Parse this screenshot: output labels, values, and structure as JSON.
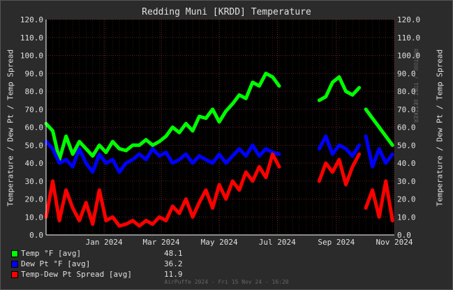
{
  "chart_data": {
    "type": "line",
    "title": "Redding Muni [KRDD] Temperature",
    "ylabel": "Temperature / Dew Pt / Temp Spread",
    "ylim": [
      0,
      120
    ],
    "yticks": [
      "0.0",
      "10.0",
      "20.0",
      "30.0",
      "40.0",
      "50.0",
      "60.0",
      "70.0",
      "80.0",
      "90.0",
      "100.0",
      "110.0",
      "120.0"
    ],
    "xlim": [
      "2023-11-15",
      "2024-11-15"
    ],
    "xticks": [
      {
        "label": "Jan 2024",
        "date": "2024-01-15"
      },
      {
        "label": "Mar 2024",
        "date": "2024-03-15"
      },
      {
        "label": "May 2024",
        "date": "2024-05-15"
      },
      {
        "label": "Jul 2024",
        "date": "2024-07-15"
      },
      {
        "label": "Sep 2024",
        "date": "2024-09-15"
      },
      {
        "label": "Nov 2024",
        "date": "2024-11-15"
      }
    ],
    "grid": true,
    "legend_position": "bottom-left",
    "series": [
      {
        "name": "Temp °F [avg]",
        "color": "#00ff00",
        "avg": "48.1",
        "points": [
          [
            "2023-11-15",
            62
          ],
          [
            "2023-11-22",
            58
          ],
          [
            "2023-11-29",
            42
          ],
          [
            "2023-12-06",
            55
          ],
          [
            "2023-12-13",
            45
          ],
          [
            "2023-12-20",
            52
          ],
          [
            "2023-12-27",
            48
          ],
          [
            "2024-01-03",
            44
          ],
          [
            "2024-01-10",
            50
          ],
          [
            "2024-01-17",
            46
          ],
          [
            "2024-01-24",
            52
          ],
          [
            "2024-01-31",
            48
          ],
          [
            "2024-02-07",
            47
          ],
          [
            "2024-02-14",
            50
          ],
          [
            "2024-02-21",
            50
          ],
          [
            "2024-02-28",
            53
          ],
          [
            "2024-03-06",
            50
          ],
          [
            "2024-03-13",
            52
          ],
          [
            "2024-03-20",
            55
          ],
          [
            "2024-03-27",
            60
          ],
          [
            "2024-04-03",
            57
          ],
          [
            "2024-04-10",
            62
          ],
          [
            "2024-04-17",
            58
          ],
          [
            "2024-04-24",
            66
          ],
          [
            "2024-05-01",
            65
          ],
          [
            "2024-05-08",
            70
          ],
          [
            "2024-05-15",
            63
          ],
          [
            "2024-05-22",
            69
          ],
          [
            "2024-05-29",
            73
          ],
          [
            "2024-06-05",
            78
          ],
          [
            "2024-06-12",
            76
          ],
          [
            "2024-06-19",
            85
          ],
          [
            "2024-06-26",
            83
          ],
          [
            "2024-07-03",
            90
          ],
          [
            "2024-07-10",
            88
          ],
          [
            "2024-07-17",
            83
          ],
          null,
          [
            "2024-08-28",
            75
          ],
          [
            "2024-09-04",
            77
          ],
          [
            "2024-09-11",
            85
          ],
          [
            "2024-09-18",
            88
          ],
          [
            "2024-09-25",
            80
          ],
          [
            "2024-10-02",
            78
          ],
          [
            "2024-10-09",
            82
          ],
          null,
          [
            "2024-10-16",
            70
          ],
          [
            "2024-10-23",
            65
          ],
          [
            "2024-10-30",
            60
          ],
          [
            "2024-11-06",
            55
          ],
          [
            "2024-11-13",
            50
          ]
        ]
      },
      {
        "name": "Dew Pt °F [avg]",
        "color": "#0000ff",
        "avg": "36.2",
        "points": [
          [
            "2023-11-15",
            52
          ],
          [
            "2023-11-22",
            48
          ],
          [
            "2023-11-29",
            40
          ],
          [
            "2023-12-06",
            42
          ],
          [
            "2023-12-13",
            38
          ],
          [
            "2023-12-20",
            48
          ],
          [
            "2023-12-27",
            40
          ],
          [
            "2024-01-03",
            35
          ],
          [
            "2024-01-10",
            45
          ],
          [
            "2024-01-17",
            40
          ],
          [
            "2024-01-24",
            42
          ],
          [
            "2024-01-31",
            35
          ],
          [
            "2024-02-07",
            40
          ],
          [
            "2024-02-14",
            42
          ],
          [
            "2024-02-21",
            45
          ],
          [
            "2024-02-28",
            42
          ],
          [
            "2024-03-06",
            48
          ],
          [
            "2024-03-13",
            44
          ],
          [
            "2024-03-20",
            46
          ],
          [
            "2024-03-27",
            40
          ],
          [
            "2024-04-03",
            42
          ],
          [
            "2024-04-10",
            45
          ],
          [
            "2024-04-17",
            40
          ],
          [
            "2024-04-24",
            44
          ],
          [
            "2024-05-01",
            42
          ],
          [
            "2024-05-08",
            40
          ],
          [
            "2024-05-15",
            45
          ],
          [
            "2024-05-22",
            40
          ],
          [
            "2024-05-29",
            44
          ],
          [
            "2024-06-05",
            48
          ],
          [
            "2024-06-12",
            44
          ],
          [
            "2024-06-19",
            50
          ],
          [
            "2024-06-26",
            44
          ],
          [
            "2024-07-03",
            48
          ],
          [
            "2024-07-10",
            46
          ],
          [
            "2024-07-17",
            45
          ],
          null,
          [
            "2024-08-28",
            48
          ],
          [
            "2024-09-04",
            55
          ],
          [
            "2024-09-11",
            45
          ],
          [
            "2024-09-18",
            50
          ],
          [
            "2024-09-25",
            48
          ],
          [
            "2024-10-02",
            44
          ],
          [
            "2024-10-09",
            50
          ],
          null,
          [
            "2024-10-16",
            55
          ],
          [
            "2024-10-23",
            38
          ],
          [
            "2024-10-30",
            48
          ],
          [
            "2024-11-06",
            40
          ],
          [
            "2024-11-13",
            45
          ]
        ]
      },
      {
        "name": "Temp-Dew Pt Spread [avg]",
        "color": "#ff0000",
        "avg": "11.9",
        "points": [
          [
            "2023-11-15",
            10
          ],
          [
            "2023-11-22",
            30
          ],
          [
            "2023-11-29",
            8
          ],
          [
            "2023-12-06",
            25
          ],
          [
            "2023-12-13",
            15
          ],
          [
            "2023-12-20",
            8
          ],
          [
            "2023-12-27",
            18
          ],
          [
            "2024-01-03",
            6
          ],
          [
            "2024-01-10",
            25
          ],
          [
            "2024-01-17",
            8
          ],
          [
            "2024-01-24",
            10
          ],
          [
            "2024-01-31",
            5
          ],
          [
            "2024-02-07",
            6
          ],
          [
            "2024-02-14",
            8
          ],
          [
            "2024-02-21",
            5
          ],
          [
            "2024-02-28",
            8
          ],
          [
            "2024-03-06",
            6
          ],
          [
            "2024-03-13",
            10
          ],
          [
            "2024-03-20",
            8
          ],
          [
            "2024-03-27",
            16
          ],
          [
            "2024-04-03",
            12
          ],
          [
            "2024-04-10",
            20
          ],
          [
            "2024-04-17",
            10
          ],
          [
            "2024-04-24",
            18
          ],
          [
            "2024-05-01",
            25
          ],
          [
            "2024-05-08",
            15
          ],
          [
            "2024-05-15",
            28
          ],
          [
            "2024-05-22",
            20
          ],
          [
            "2024-05-29",
            30
          ],
          [
            "2024-06-05",
            25
          ],
          [
            "2024-06-12",
            35
          ],
          [
            "2024-06-19",
            30
          ],
          [
            "2024-06-26",
            38
          ],
          [
            "2024-07-03",
            32
          ],
          [
            "2024-07-10",
            45
          ],
          [
            "2024-07-17",
            38
          ],
          null,
          [
            "2024-08-28",
            30
          ],
          [
            "2024-09-04",
            40
          ],
          [
            "2024-09-11",
            35
          ],
          [
            "2024-09-18",
            42
          ],
          [
            "2024-09-25",
            28
          ],
          [
            "2024-10-02",
            38
          ],
          [
            "2024-10-09",
            45
          ],
          null,
          [
            "2024-10-16",
            15
          ],
          [
            "2024-10-23",
            25
          ],
          [
            "2024-10-30",
            10
          ],
          [
            "2024-11-06",
            30
          ],
          [
            "2024-11-13",
            8
          ]
        ]
      }
    ]
  },
  "side_note": "RRDTOOL / TOBI OETIKER",
  "footer": "AirPuffe 2024 - Fri 15 Nov 24 - 16:20"
}
